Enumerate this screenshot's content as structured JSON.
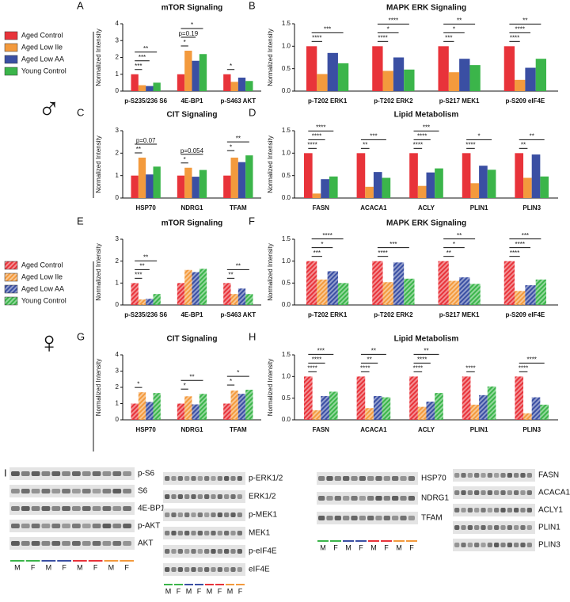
{
  "sections": [
    {
      "symbol": "♂"
    },
    {
      "symbol": "♀"
    }
  ],
  "y_label": "Normalized Intensity",
  "chart_data": [
    {
      "type": "bar",
      "panel": "A",
      "title": "mTOR Signaling",
      "pattern": "solid",
      "categories": [
        "p-S235/236 S6",
        "4E-BP1",
        "p-S463 AKT"
      ],
      "ylim": [
        0,
        4
      ],
      "yticks": [
        0,
        1,
        2,
        3,
        4
      ],
      "series": [
        {
          "name": "Aged Control",
          "color": "#e8333a",
          "values": [
            1.0,
            1.0,
            1.0
          ]
        },
        {
          "name": "Aged Low Ile",
          "color": "#f39a3d",
          "values": [
            0.35,
            2.4,
            0.55
          ]
        },
        {
          "name": "Aged Low AA",
          "color": "#3a4fa3",
          "values": [
            0.3,
            1.8,
            0.8
          ]
        },
        {
          "name": "Young Control",
          "color": "#3bb54a",
          "values": [
            0.5,
            2.2,
            0.6
          ]
        }
      ],
      "annotations": [
        {
          "category": 0,
          "series": 1,
          "label": "***"
        },
        {
          "category": 0,
          "series": 2,
          "label": "***"
        },
        {
          "category": 0,
          "series": 3,
          "label": "**"
        },
        {
          "category": 1,
          "series": 1,
          "label": "*"
        },
        {
          "category": 1,
          "series": 2,
          "label": "p=0.19"
        },
        {
          "category": 1,
          "series": 3,
          "label": "*"
        },
        {
          "category": 2,
          "series": 1,
          "label": "*"
        }
      ]
    },
    {
      "type": "bar",
      "panel": "B",
      "title": "MAPK ERK Signaling",
      "pattern": "solid",
      "categories": [
        "p-T202 ERK1",
        "p-T202 ERK2",
        "p-S217 MEK1",
        "p-S209 eIF4E"
      ],
      "ylim": [
        0,
        1.5
      ],
      "yticks": [
        {
          "value": 0,
          "label": "0.0"
        },
        0.5,
        {
          "value": 1,
          "label": "1.0"
        },
        1.5
      ],
      "series": [
        {
          "name": "Aged Control",
          "color": "#e8333a",
          "values": [
            1.0,
            1.0,
            1.0,
            1.0
          ]
        },
        {
          "name": "Aged Low Ile",
          "color": "#f39a3d",
          "values": [
            0.38,
            0.45,
            0.42,
            0.25
          ]
        },
        {
          "name": "Aged Low AA",
          "color": "#3a4fa3",
          "values": [
            0.85,
            0.75,
            0.72,
            0.52
          ]
        },
        {
          "name": "Young Control",
          "color": "#3bb54a",
          "values": [
            0.62,
            0.48,
            0.58,
            0.72
          ]
        }
      ],
      "annotations": [
        {
          "category": 0,
          "series": 1,
          "label": "****"
        },
        {
          "category": 0,
          "series": 3,
          "label": "***"
        },
        {
          "category": 1,
          "series": 1,
          "label": "****"
        },
        {
          "category": 1,
          "series": 2,
          "label": "*"
        },
        {
          "category": 1,
          "series": 3,
          "label": "****"
        },
        {
          "category": 2,
          "series": 1,
          "label": "***"
        },
        {
          "category": 2,
          "series": 2,
          "label": "*"
        },
        {
          "category": 2,
          "series": 3,
          "label": "**"
        },
        {
          "category": 3,
          "series": 1,
          "label": "****"
        },
        {
          "category": 3,
          "series": 2,
          "label": "****"
        },
        {
          "category": 3,
          "series": 3,
          "label": "**"
        }
      ]
    },
    {
      "type": "bar",
      "panel": "C",
      "title": "CIT Signaling",
      "pattern": "solid",
      "categories": [
        "HSP70",
        "NDRG1",
        "TFAM"
      ],
      "ylim": [
        0,
        3
      ],
      "yticks": [
        0,
        1,
        2,
        3
      ],
      "series": [
        {
          "name": "Aged Control",
          "color": "#e8333a",
          "values": [
            1.0,
            1.0,
            1.0
          ]
        },
        {
          "name": "Aged Low Ile",
          "color": "#f39a3d",
          "values": [
            1.8,
            1.35,
            1.8
          ]
        },
        {
          "name": "Aged Low AA",
          "color": "#3a4fa3",
          "values": [
            1.05,
            0.95,
            1.6
          ]
        },
        {
          "name": "Young Control",
          "color": "#3bb54a",
          "values": [
            1.4,
            1.25,
            1.9
          ]
        }
      ],
      "annotations": [
        {
          "category": 0,
          "series": 1,
          "label": "**"
        },
        {
          "category": 0,
          "series": 3,
          "label": "p=0.07"
        },
        {
          "category": 1,
          "series": 1,
          "label": "*"
        },
        {
          "category": 1,
          "series": 3,
          "label": "p=0.054"
        },
        {
          "category": 2,
          "series": 1,
          "label": "*"
        },
        {
          "category": 2,
          "series": 3,
          "label": "**"
        }
      ]
    },
    {
      "type": "bar",
      "panel": "D",
      "title": "Lipid Metabolism",
      "pattern": "solid",
      "categories": [
        "FASN",
        "ACACA1",
        "ACLY",
        "PLIN1",
        "PLIN3"
      ],
      "ylim": [
        0,
        1.5
      ],
      "yticks": [
        {
          "value": 0,
          "label": "0.0"
        },
        0.5,
        {
          "value": 1,
          "label": "1.0"
        },
        1.5
      ],
      "series": [
        {
          "name": "Aged Control",
          "color": "#e8333a",
          "values": [
            1.0,
            1.0,
            1.0,
            1.0,
            1.0
          ]
        },
        {
          "name": "Aged Low Ile",
          "color": "#f39a3d",
          "values": [
            0.1,
            0.25,
            0.27,
            0.33,
            0.45
          ]
        },
        {
          "name": "Aged Low AA",
          "color": "#3a4fa3",
          "values": [
            0.42,
            0.58,
            0.57,
            0.72,
            0.97
          ]
        },
        {
          "name": "Young Control",
          "color": "#3bb54a",
          "values": [
            0.48,
            0.45,
            0.66,
            0.63,
            0.48
          ]
        }
      ],
      "annotations": [
        {
          "category": 0,
          "series": 1,
          "label": "****"
        },
        {
          "category": 0,
          "series": 2,
          "label": "****"
        },
        {
          "category": 0,
          "series": 3,
          "label": "****"
        },
        {
          "category": 1,
          "series": 1,
          "label": "**"
        },
        {
          "category": 1,
          "series": 3,
          "label": "***"
        },
        {
          "category": 2,
          "series": 1,
          "label": "****"
        },
        {
          "category": 2,
          "series": 2,
          "label": "****"
        },
        {
          "category": 2,
          "series": 3,
          "label": "***"
        },
        {
          "category": 3,
          "series": 1,
          "label": "****"
        },
        {
          "category": 3,
          "series": 3,
          "label": "*"
        },
        {
          "category": 4,
          "series": 1,
          "label": "**"
        },
        {
          "category": 4,
          "series": 3,
          "label": "**"
        }
      ]
    },
    {
      "type": "bar",
      "panel": "E",
      "title": "mTOR Signaling",
      "pattern": "hatched",
      "categories": [
        "p-S235/236 S6",
        "4E-BP1",
        "p-S463 AKT"
      ],
      "ylim": [
        0,
        3
      ],
      "yticks": [
        0,
        1,
        2,
        3
      ],
      "series": [
        {
          "name": "Aged Control",
          "color": "#e8333a",
          "values": [
            1.0,
            1.0,
            1.0
          ]
        },
        {
          "name": "Aged Low Ile",
          "color": "#f39a3d",
          "values": [
            0.25,
            1.6,
            0.5
          ]
        },
        {
          "name": "Aged Low AA",
          "color": "#3a4fa3",
          "values": [
            0.28,
            1.5,
            0.75
          ]
        },
        {
          "name": "Young Control",
          "color": "#3bb54a",
          "values": [
            0.5,
            1.65,
            0.5
          ]
        }
      ],
      "annotations": [
        {
          "category": 0,
          "series": 1,
          "label": "***"
        },
        {
          "category": 0,
          "series": 2,
          "label": "**"
        },
        {
          "category": 0,
          "series": 3,
          "label": "**"
        },
        {
          "category": 2,
          "series": 1,
          "label": "**"
        },
        {
          "category": 2,
          "series": 3,
          "label": "**"
        }
      ]
    },
    {
      "type": "bar",
      "panel": "F",
      "title": "MAPK ERK Signaling",
      "pattern": "hatched",
      "categories": [
        "p-T202 ERK1",
        "p-T202 ERK2",
        "p-S217 MEK1",
        "p-S209 eIF4E"
      ],
      "ylim": [
        0,
        1.5
      ],
      "yticks": [
        {
          "value": 0,
          "label": "0.0"
        },
        0.5,
        {
          "value": 1,
          "label": "1.0"
        },
        1.5
      ],
      "series": [
        {
          "name": "Aged Control",
          "color": "#e8333a",
          "values": [
            1.0,
            1.0,
            1.0,
            1.0
          ]
        },
        {
          "name": "Aged Low Ile",
          "color": "#f39a3d",
          "values": [
            0.58,
            0.52,
            0.55,
            0.32
          ]
        },
        {
          "name": "Aged Low AA",
          "color": "#3a4fa3",
          "values": [
            0.77,
            0.97,
            0.63,
            0.45
          ]
        },
        {
          "name": "Young Control",
          "color": "#3bb54a",
          "values": [
            0.5,
            0.6,
            0.48,
            0.58
          ]
        }
      ],
      "annotations": [
        {
          "category": 0,
          "series": 1,
          "label": "***"
        },
        {
          "category": 0,
          "series": 2,
          "label": "*"
        },
        {
          "category": 0,
          "series": 3,
          "label": "****"
        },
        {
          "category": 1,
          "series": 1,
          "label": "****"
        },
        {
          "category": 1,
          "series": 3,
          "label": "***"
        },
        {
          "category": 2,
          "series": 1,
          "label": "**"
        },
        {
          "category": 2,
          "series": 2,
          "label": "*"
        },
        {
          "category": 2,
          "series": 3,
          "label": "**"
        },
        {
          "category": 3,
          "series": 1,
          "label": "****"
        },
        {
          "category": 3,
          "series": 2,
          "label": "****"
        },
        {
          "category": 3,
          "series": 3,
          "label": "***"
        }
      ]
    },
    {
      "type": "bar",
      "panel": "G",
      "title": "CIT Signaling",
      "pattern": "hatched",
      "categories": [
        "HSP70",
        "NDRG1",
        "TFAM"
      ],
      "ylim": [
        0,
        4
      ],
      "yticks": [
        0,
        1,
        2,
        3,
        4
      ],
      "series": [
        {
          "name": "Aged Control",
          "color": "#e8333a",
          "values": [
            1.0,
            1.0,
            1.0
          ]
        },
        {
          "name": "Aged Low Ile",
          "color": "#f39a3d",
          "values": [
            1.7,
            1.45,
            1.8
          ]
        },
        {
          "name": "Aged Low AA",
          "color": "#3a4fa3",
          "values": [
            1.1,
            0.95,
            1.6
          ]
        },
        {
          "name": "Young Control",
          "color": "#3bb54a",
          "values": [
            1.65,
            1.6,
            1.85
          ]
        }
      ],
      "annotations": [
        {
          "category": 0,
          "series": 1,
          "label": "*"
        },
        {
          "category": 1,
          "series": 1,
          "label": "*"
        },
        {
          "category": 1,
          "series": 3,
          "label": "**"
        },
        {
          "category": 2,
          "series": 1,
          "label": "*"
        },
        {
          "category": 2,
          "series": 3,
          "label": "*"
        }
      ]
    },
    {
      "type": "bar",
      "panel": "H",
      "title": "Lipid Metabolism",
      "pattern": "hatched",
      "categories": [
        "FASN",
        "ACACA1",
        "ACLY",
        "PLIN1",
        "PLIN3"
      ],
      "ylim": [
        0,
        1.5
      ],
      "yticks": [
        {
          "value": 0,
          "label": "0.0"
        },
        0.5,
        {
          "value": 1,
          "label": "1.0"
        },
        1.5
      ],
      "series": [
        {
          "name": "Aged Control",
          "color": "#e8333a",
          "values": [
            1.0,
            1.0,
            1.0,
            1.0,
            1.0
          ]
        },
        {
          "name": "Aged Low Ile",
          "color": "#f39a3d",
          "values": [
            0.22,
            0.27,
            0.3,
            0.35,
            0.15
          ]
        },
        {
          "name": "Aged Low AA",
          "color": "#3a4fa3",
          "values": [
            0.55,
            0.55,
            0.42,
            0.57,
            0.52
          ]
        },
        {
          "name": "Young Control",
          "color": "#3bb54a",
          "values": [
            0.65,
            0.52,
            0.62,
            0.77,
            0.35
          ]
        }
      ],
      "annotations": [
        {
          "category": 0,
          "series": 1,
          "label": "****"
        },
        {
          "category": 0,
          "series": 2,
          "label": "****"
        },
        {
          "category": 0,
          "series": 3,
          "label": "***"
        },
        {
          "category": 1,
          "series": 1,
          "label": "****"
        },
        {
          "category": 1,
          "series": 2,
          "label": "**"
        },
        {
          "category": 1,
          "series": 3,
          "label": "**"
        },
        {
          "category": 2,
          "series": 1,
          "label": "****"
        },
        {
          "category": 2,
          "series": 2,
          "label": "****"
        },
        {
          "category": 2,
          "series": 3,
          "label": "**"
        },
        {
          "category": 3,
          "series": 1,
          "label": "****"
        },
        {
          "category": 4,
          "series": 1,
          "label": "****"
        },
        {
          "category": 4,
          "series": 3,
          "label": "****"
        }
      ]
    }
  ],
  "blots": {
    "panel": "I",
    "lane_labels": [
      "M",
      "F",
      "M",
      "F",
      "M",
      "F",
      "M",
      "F"
    ],
    "groups": [
      {
        "rows": [
          "p-S6",
          "S6",
          "4E-BP1",
          "p-AKT",
          "AKT"
        ]
      },
      {
        "rows": [
          "p-ERK1/2",
          "ERK1/2",
          "p-MEK1",
          "MEK1",
          "p-eIF4E",
          "eIF4E"
        ]
      },
      {
        "rows": [
          "HSP70",
          "NDRG1",
          "TFAM"
        ]
      },
      {
        "rows": [
          "FASN",
          "ACACA1",
          "ACLY1",
          "PLIN1",
          "PLIN3"
        ]
      }
    ]
  }
}
